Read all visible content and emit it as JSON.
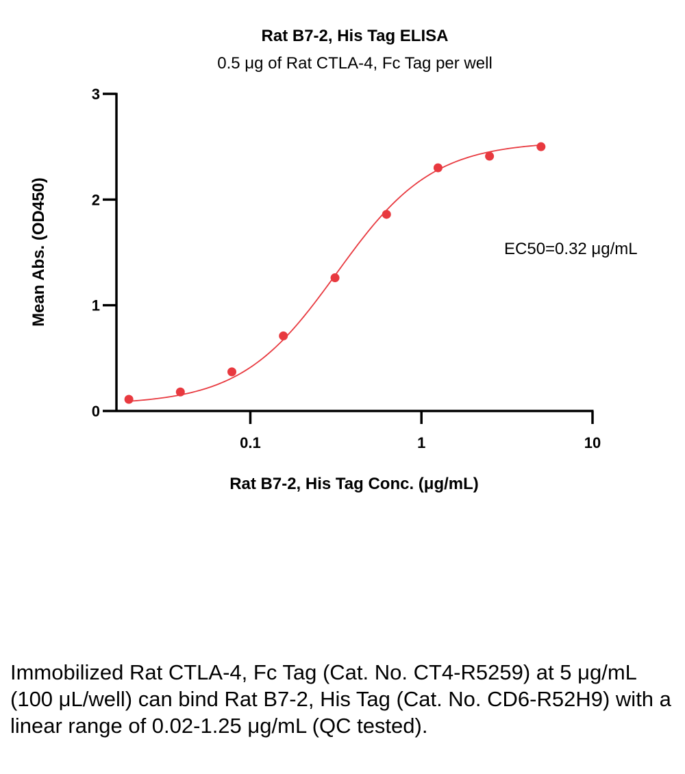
{
  "chart_data": {
    "type": "scatter",
    "title": "Rat B7-2, His Tag ELISA",
    "subtitle": "0.5 μg of Rat CTLA-4, Fc Tag per well",
    "xlabel": "Rat B7-2, His Tag Conc. (μg/mL)",
    "ylabel": "Mean Abs. (OD450)",
    "xscale": "log",
    "xlim": [
      0.0165,
      10
    ],
    "ylim": [
      0,
      3
    ],
    "x_ticks": [
      0.1,
      1,
      10
    ],
    "x_tick_labels": [
      "0.1",
      "1",
      "10"
    ],
    "y_ticks": [
      0,
      1,
      2,
      3
    ],
    "y_tick_labels": [
      "0",
      "1",
      "2",
      "3"
    ],
    "series": [
      {
        "name": "Rat B7-2, His Tag",
        "color": "#e8393f",
        "x": [
          0.0195,
          0.039,
          0.078,
          0.156,
          0.3125,
          0.625,
          1.25,
          2.5,
          5
        ],
        "values": [
          0.11,
          0.18,
          0.37,
          0.71,
          1.26,
          1.86,
          2.3,
          2.41,
          2.5
        ]
      }
    ],
    "fit": {
      "model": "4PL",
      "bottom": 0.06,
      "top": 2.55,
      "ec50": 0.32,
      "hill": 1.55
    },
    "annotation": "EC50=0.32 μg/mL"
  },
  "caption": "Immobilized Rat CTLA-4, Fc Tag (Cat. No. CT4-R5259) at 5 μg/mL (100 μL/well) can bind Rat B7-2, His Tag (Cat. No. CD6-R52H9) with a linear range of 0.02-1.25 μg/mL (QC tested)."
}
